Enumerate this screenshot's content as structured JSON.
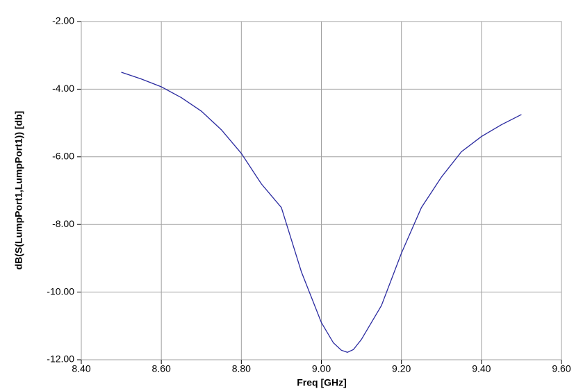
{
  "chart_data": {
    "type": "line",
    "x_label": "Freq [GHz]",
    "y_label": "dB(S(LumpPort1,LumpPort1)) [db]",
    "x": [
      8.5,
      8.55,
      8.6,
      8.65,
      8.7,
      8.75,
      8.8,
      8.85,
      8.9,
      8.95,
      9.0,
      9.03,
      9.05,
      9.065,
      9.08,
      9.1,
      9.15,
      9.2,
      9.25,
      9.3,
      9.35,
      9.4,
      9.45,
      9.5
    ],
    "series": [
      {
        "color": "#2a2aa0",
        "values": [
          -3.5,
          -3.7,
          -3.93,
          -4.25,
          -4.65,
          -5.2,
          -5.9,
          -6.8,
          -7.5,
          -9.4,
          -10.9,
          -11.5,
          -11.72,
          -11.78,
          -11.7,
          -11.4,
          -10.4,
          -8.85,
          -7.5,
          -6.6,
          -5.85,
          -5.4,
          -5.05,
          -4.75
        ]
      }
    ],
    "xlim": [
      8.4,
      9.6
    ],
    "ylim": [
      -12,
      -2
    ],
    "xticks": [
      {
        "value": 8.4,
        "label": "8.40"
      },
      {
        "value": 8.6,
        "label": "8.60"
      },
      {
        "value": 8.8,
        "label": "8.80"
      },
      {
        "value": 9.0,
        "label": "9.00"
      },
      {
        "value": 9.2,
        "label": "9.20"
      },
      {
        "value": 9.4,
        "label": "9.40"
      },
      {
        "value": 9.6,
        "label": "9.60"
      }
    ],
    "yticks": [
      {
        "value": -12,
        "label": "-12.00"
      },
      {
        "value": -10,
        "label": "-10.00"
      },
      {
        "value": -8,
        "label": "-8.00"
      },
      {
        "value": -6,
        "label": "-6.00"
      },
      {
        "value": -4,
        "label": "-4.00"
      },
      {
        "value": -2,
        "label": "-2.00"
      }
    ],
    "grid": true
  }
}
